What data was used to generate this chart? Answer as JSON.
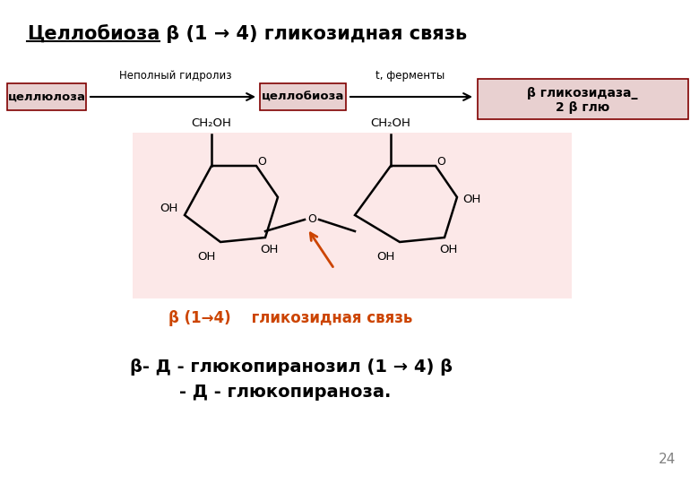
{
  "title_part1": "Целлобиоза",
  "title_part2": " β (1 → 4) гликозидная связь",
  "label_cellulose": "целлюлоза",
  "label_partial": "Неполный гидролиз",
  "label_cellobiose": "целлобиоза",
  "label_ferments": "t, ферменты",
  "label_glucosidase": "β гликозидаза_",
  "label_glu": "2 β глю",
  "label_beta_link": "β (1→4)    гликозидная связь",
  "label_bottom1": "β- Д - глюкопиранозил (1 → 4) β",
  "label_bottom2": "- Д - глюкопираноза.",
  "bg_color": "#ffffff",
  "pink_bg": "#fce8e8",
  "arrow_color": "#000000",
  "orange_color": "#cc4400",
  "page_number": "24"
}
